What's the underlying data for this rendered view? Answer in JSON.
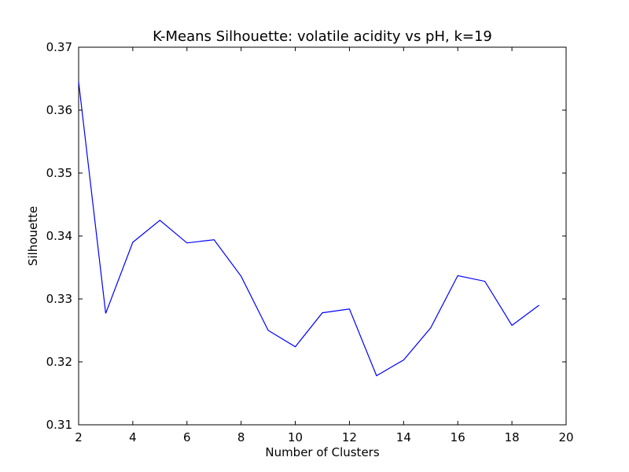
{
  "chart_data": {
    "type": "line",
    "title": "K-Means Silhouette: volatile acidity vs pH, k=19",
    "xlabel": "Number of Clusters",
    "ylabel": "Silhouette",
    "xlim": [
      2,
      20
    ],
    "ylim": [
      0.31,
      0.37
    ],
    "xticks": [
      2,
      4,
      6,
      8,
      10,
      12,
      14,
      16,
      18,
      20
    ],
    "yticks": [
      0.31,
      0.32,
      0.33,
      0.34,
      0.35,
      0.36,
      0.37
    ],
    "grid": false,
    "line_color": "#0000ff",
    "series": [
      {
        "x": [
          2,
          3,
          4,
          5,
          6,
          7,
          8,
          9,
          10,
          11,
          12,
          13,
          14,
          15,
          16,
          17,
          18,
          19
        ],
        "values": [
          0.3645,
          0.3277,
          0.339,
          0.3425,
          0.3389,
          0.3394,
          0.3336,
          0.325,
          0.3224,
          0.3278,
          0.3284,
          0.3178,
          0.3203,
          0.3254,
          0.3337,
          0.3328,
          0.3258,
          0.329
        ]
      }
    ]
  }
}
